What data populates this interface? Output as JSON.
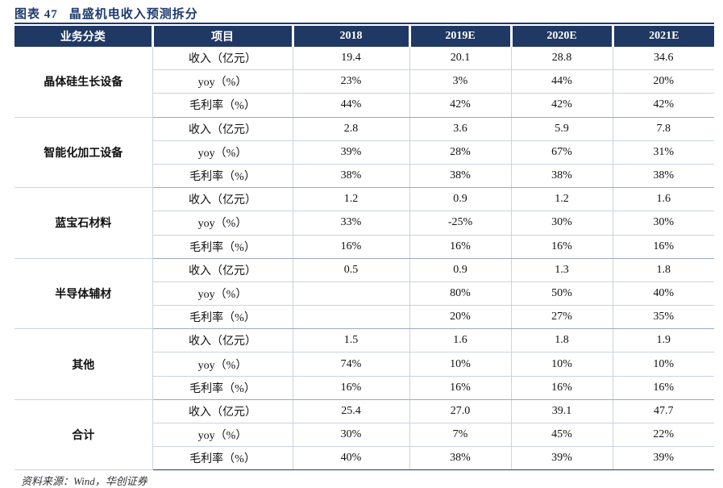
{
  "title": {
    "label": "图表 47",
    "text": "晶盛机电收入预测拆分"
  },
  "headers": [
    "业务分类",
    "项目",
    "2018",
    "2019E",
    "2020E",
    "2021E"
  ],
  "groups": [
    {
      "name": "晶体硅生长设备",
      "rows": [
        {
          "item": "收入（亿元）",
          "v": [
            "19.4",
            "20.1",
            "28.8",
            "34.6"
          ]
        },
        {
          "item": "yoy（%）",
          "v": [
            "23%",
            "3%",
            "44%",
            "20%"
          ]
        },
        {
          "item": "毛利率（%）",
          "v": [
            "44%",
            "42%",
            "42%",
            "42%"
          ]
        }
      ]
    },
    {
      "name": "智能化加工设备",
      "rows": [
        {
          "item": "收入（亿元）",
          "v": [
            "2.8",
            "3.6",
            "5.9",
            "7.8"
          ]
        },
        {
          "item": "yoy（%）",
          "v": [
            "39%",
            "28%",
            "67%",
            "31%"
          ]
        },
        {
          "item": "毛利率（%）",
          "v": [
            "38%",
            "38%",
            "38%",
            "38%"
          ]
        }
      ]
    },
    {
      "name": "蓝宝石材料",
      "rows": [
        {
          "item": "收入（亿元）",
          "v": [
            "1.2",
            "0.9",
            "1.2",
            "1.6"
          ]
        },
        {
          "item": "yoy（%）",
          "v": [
            "33%",
            "-25%",
            "30%",
            "30%"
          ]
        },
        {
          "item": "毛利率（%）",
          "v": [
            "16%",
            "16%",
            "16%",
            "16%"
          ]
        }
      ]
    },
    {
      "name": "半导体辅材",
      "rows": [
        {
          "item": "收入（亿元）",
          "v": [
            "0.5",
            "0.9",
            "1.3",
            "1.8"
          ]
        },
        {
          "item": "yoy（%）",
          "v": [
            "",
            "80%",
            "50%",
            "40%"
          ]
        },
        {
          "item": "毛利率（%）",
          "v": [
            "",
            "20%",
            "27%",
            "35%"
          ]
        }
      ]
    },
    {
      "name": "其他",
      "rows": [
        {
          "item": "收入（亿元）",
          "v": [
            "1.5",
            "1.6",
            "1.8",
            "1.9"
          ]
        },
        {
          "item": "yoy（%）",
          "v": [
            "74%",
            "10%",
            "10%",
            "10%"
          ]
        },
        {
          "item": "毛利率（%）",
          "v": [
            "16%",
            "16%",
            "16%",
            "16%"
          ]
        }
      ]
    },
    {
      "name": "合计",
      "rows": [
        {
          "item": "收入（亿元）",
          "v": [
            "25.4",
            "27.0",
            "39.1",
            "47.7"
          ]
        },
        {
          "item": "yoy（%）",
          "v": [
            "30%",
            "7%",
            "45%",
            "22%"
          ]
        },
        {
          "item": "毛利率（%）",
          "v": [
            "40%",
            "38%",
            "39%",
            "39%"
          ]
        }
      ]
    }
  ],
  "source": "资料来源：Wind，华创证券",
  "colors": {
    "header_bg": "#203864",
    "title": "#1f3b6e",
    "border": "#c9d3e3"
  }
}
